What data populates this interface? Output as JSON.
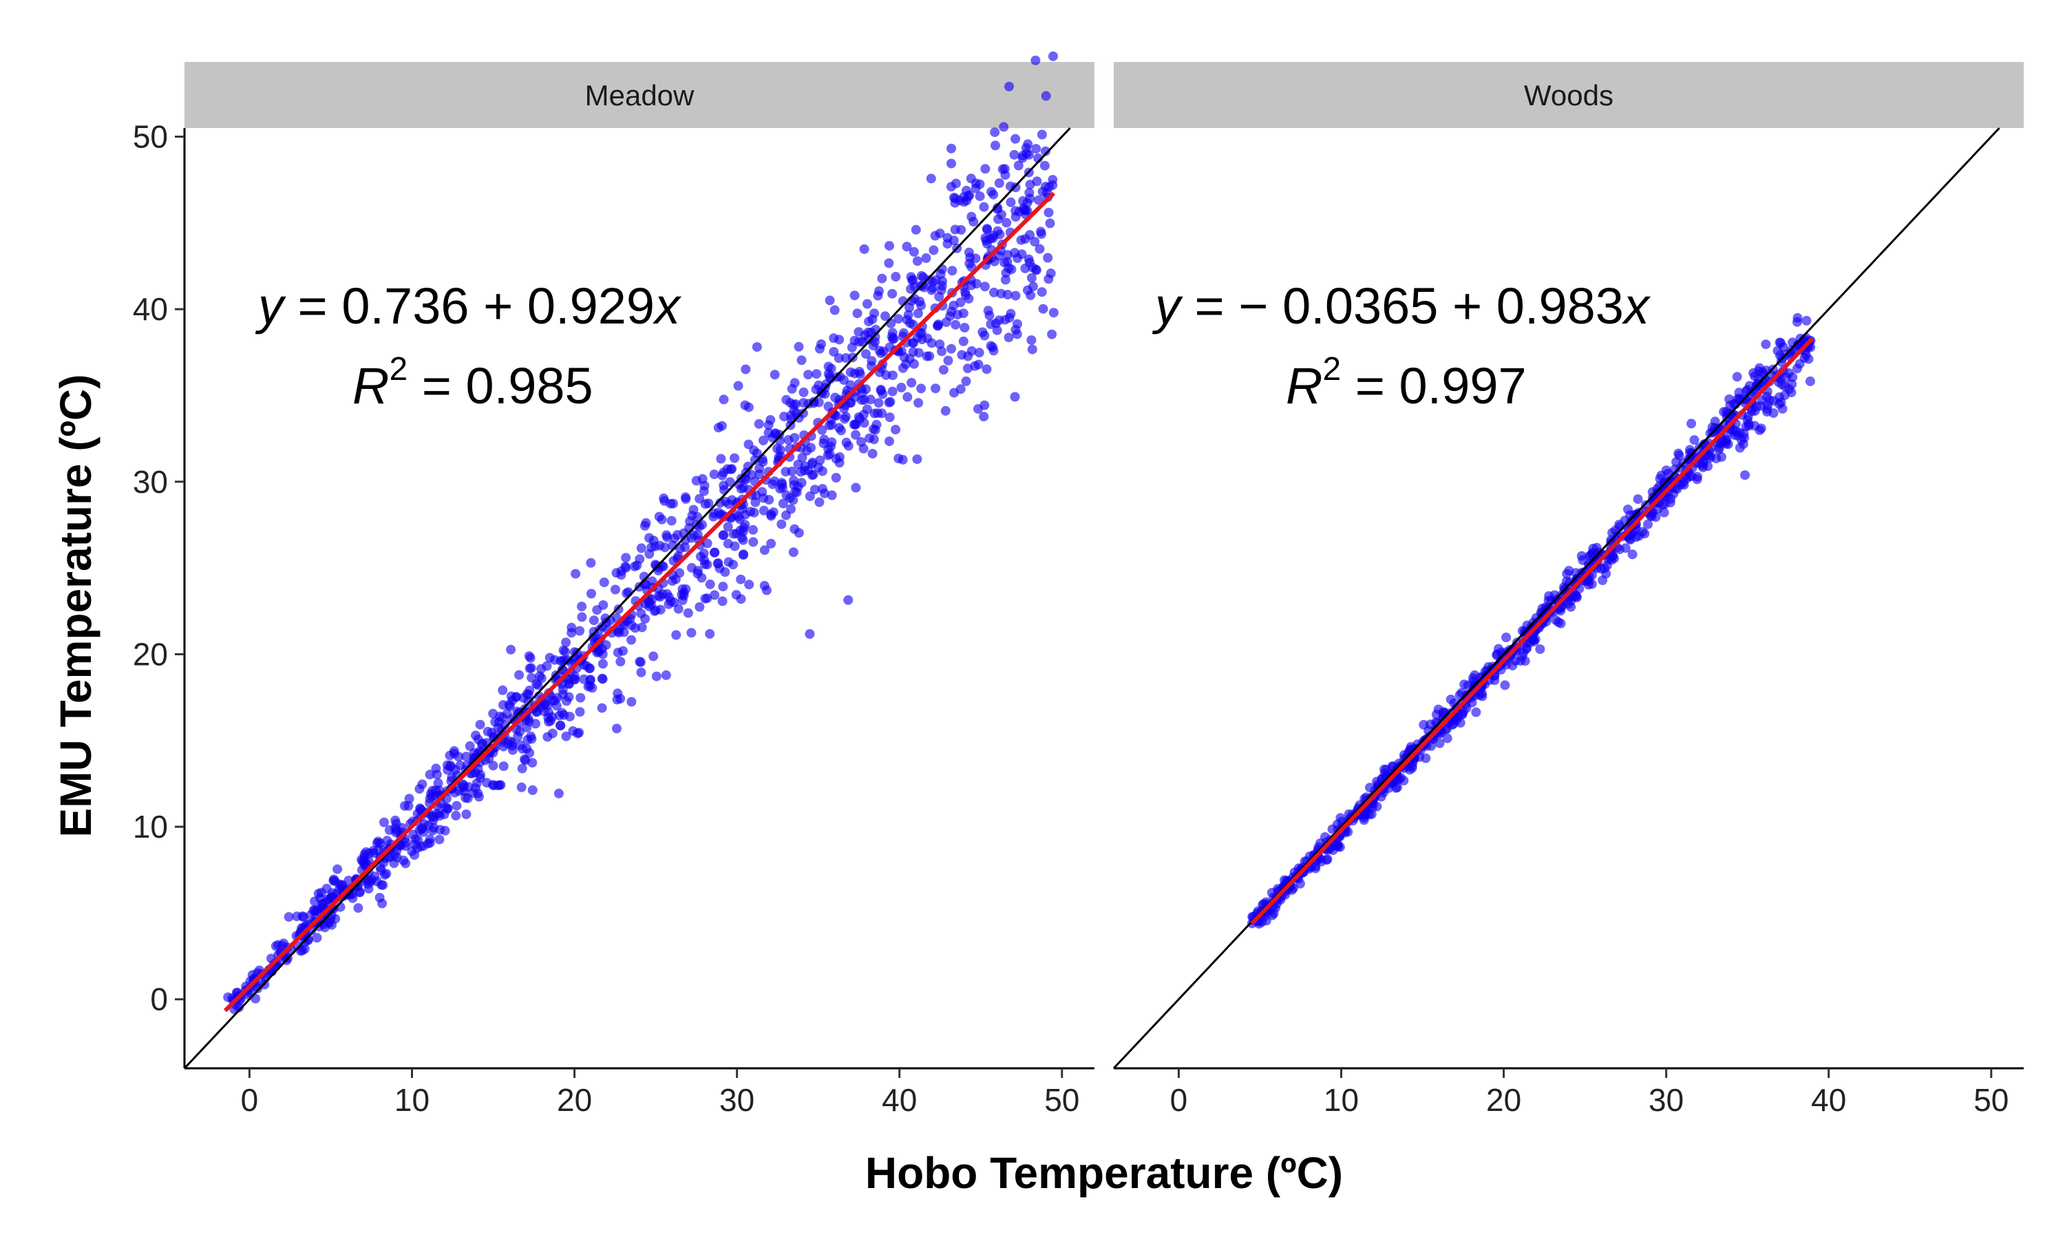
{
  "chart_data": {
    "type": "scatter",
    "xlabel": "Hobo Temperature (ºC)",
    "ylabel": "EMU Temperature (ºC)",
    "xlim": [
      -4,
      52
    ],
    "ylim": [
      -4,
      50.5
    ],
    "xticks": [
      0,
      10,
      20,
      30,
      40,
      50
    ],
    "yticks": [
      0,
      10,
      20,
      30,
      40,
      50
    ],
    "grid": false,
    "colors": {
      "points": "#1400f5",
      "fit_line": "#e8141e",
      "identity_line": "#000000",
      "strip": "#c4c4c4"
    },
    "panels": [
      {
        "name": "Meadow",
        "x_range": [
          -1.5,
          49.5
        ],
        "fit": {
          "intercept": 0.736,
          "slope": 0.929,
          "r2": 0.985
        },
        "equation_parts": {
          "y": "y",
          "eq": " = 0.736 + 0.929",
          "x": "x"
        },
        "r2_parts": {
          "r": "R",
          "sup": "2",
          "val": " = 0.985"
        }
      },
      {
        "name": "Woods",
        "x_range": [
          4.5,
          39
        ],
        "fit": {
          "intercept": -0.0365,
          "slope": 0.983,
          "r2": 0.997
        },
        "equation_parts": {
          "y": "y",
          "eq": " = − 0.0365 + 0.983",
          "x": "x"
        },
        "r2_parts": {
          "r": "R",
          "sup": "2",
          "val": " = 0.997"
        }
      }
    ]
  }
}
